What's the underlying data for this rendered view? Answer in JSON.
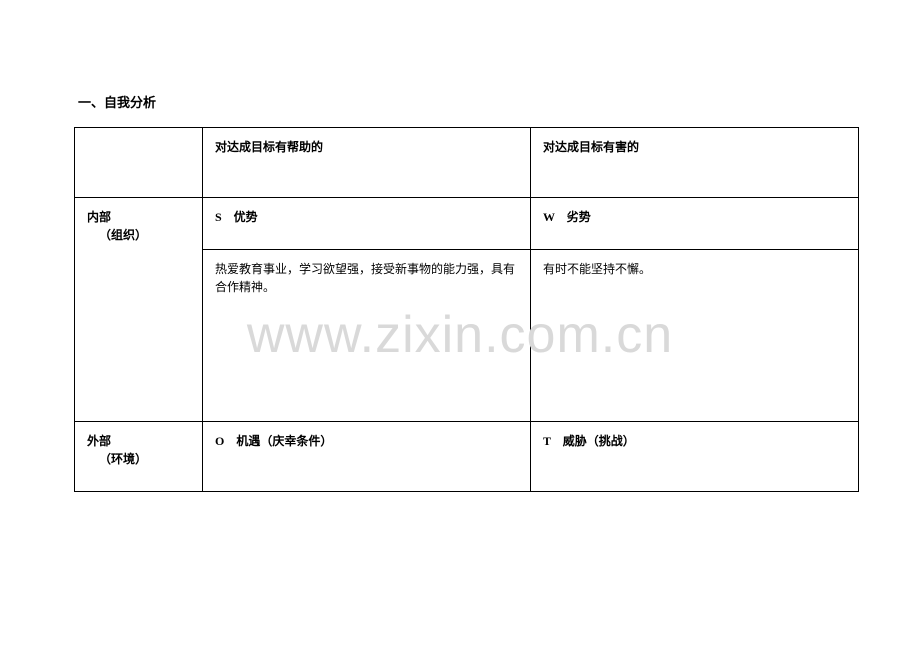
{
  "heading": "一、自我分析",
  "watermark": "www.zixin.com.cn",
  "table": {
    "header": {
      "left": "",
      "helpful": "对达成目标有帮助的",
      "harmful": "对达成目标有害的"
    },
    "internal": {
      "title": "内部",
      "subtitle": "（组织）",
      "s_label": "S　优势",
      "w_label": "W　劣势",
      "s_text": "热爱教育事业，学习欲望强，接受新事物的能力强，具有合作精神。",
      "w_text": "有时不能坚持不懈。"
    },
    "external": {
      "title": "外部",
      "subtitle": "（环境）",
      "o_label": "O　机遇（庆幸条件）",
      "t_label": "T　威胁（挑战）"
    }
  }
}
